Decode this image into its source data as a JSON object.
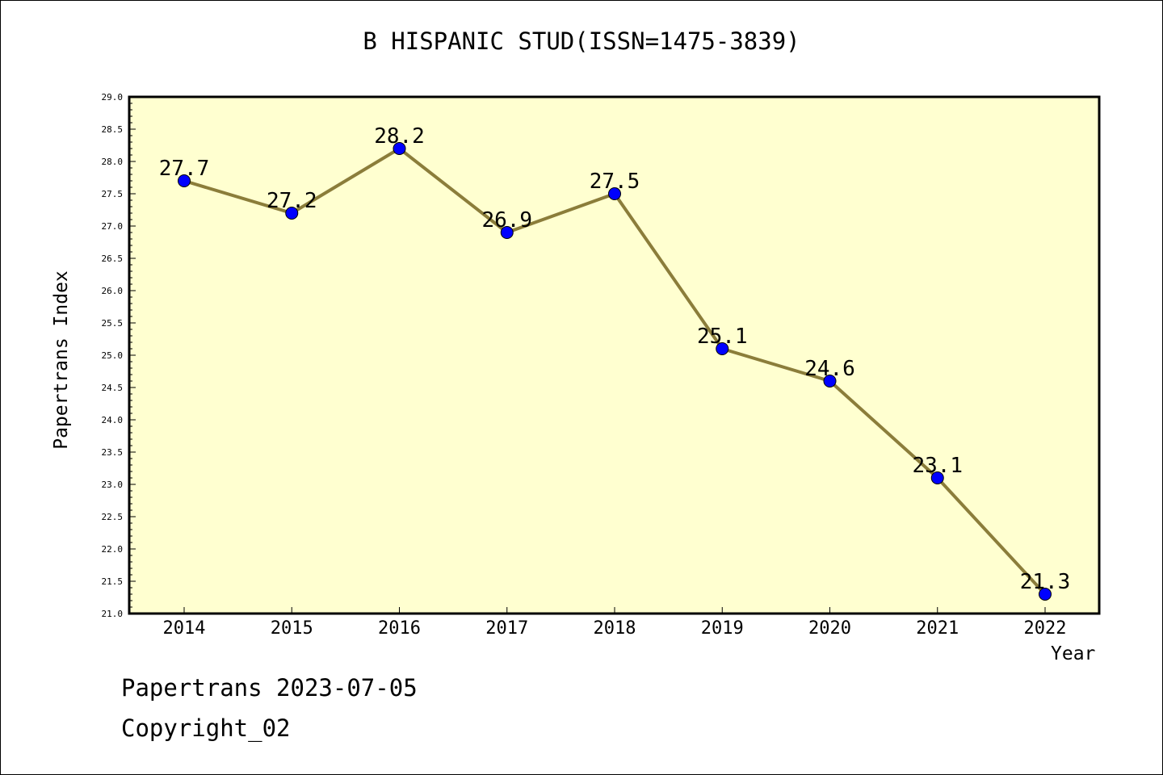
{
  "chart_data": {
    "type": "line",
    "title": "B HISPANIC STUD(ISSN=1475-3839)",
    "xlabel": "Year",
    "ylabel": "Papertrans Index",
    "x": [
      "2014",
      "2015",
      "2016",
      "2017",
      "2018",
      "2019",
      "2020",
      "2021",
      "2022"
    ],
    "series": [
      {
        "values": [
          27.7,
          27.2,
          28.2,
          26.9,
          27.5,
          25.1,
          24.6,
          23.1,
          21.3
        ]
      }
    ],
    "data_labels": [
      "27.7",
      "27.2",
      "28.2",
      "26.9",
      "27.5",
      "25.1",
      "24.6",
      "23.1",
      "21.3"
    ],
    "ylim": [
      21.0,
      29.0
    ],
    "yticks": [
      "21.0",
      "21.5",
      "22.0",
      "22.5",
      "23.0",
      "23.5",
      "24.0",
      "24.5",
      "25.0",
      "25.5",
      "26.0",
      "26.5",
      "27.0",
      "27.5",
      "28.0",
      "28.5",
      "29.0"
    ],
    "grid": false,
    "colors": {
      "plot_background": "#FFFFD0",
      "line": "#8B7D3A",
      "marker": "#0000FF"
    }
  },
  "footer": {
    "line1": "Papertrans 2023-07-05",
    "line2": "Copyright_02"
  }
}
